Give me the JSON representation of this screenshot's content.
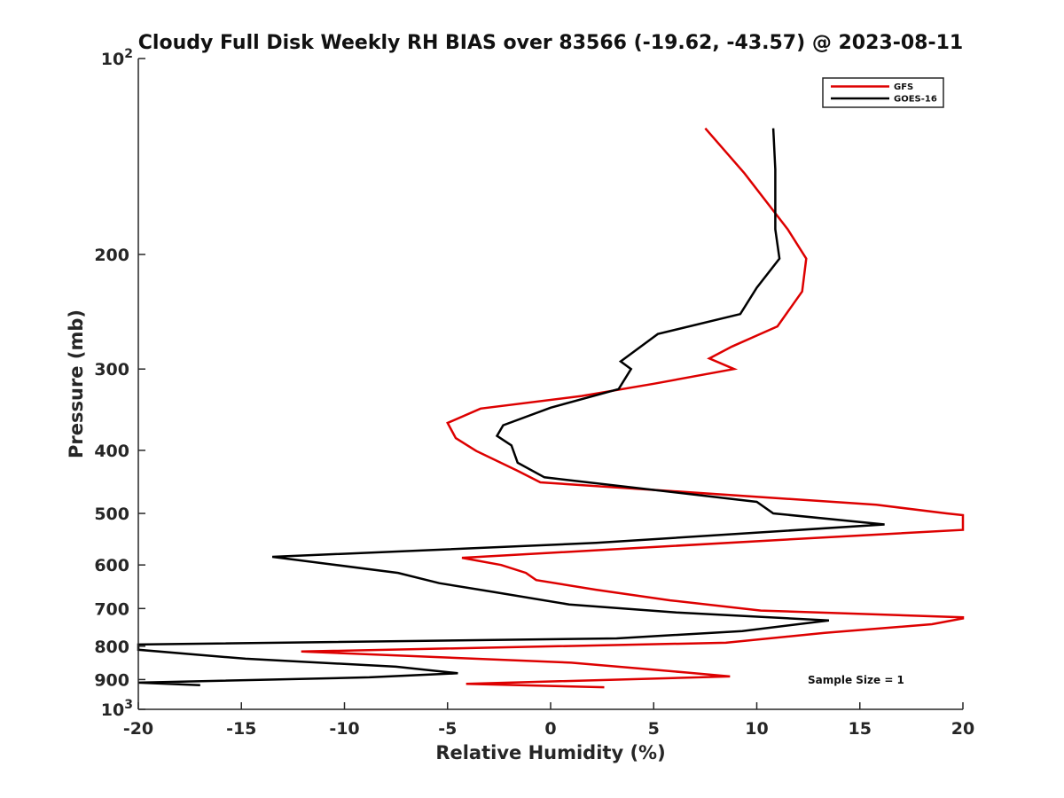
{
  "chart_data": {
    "type": "line",
    "title": "Cloudy Full Disk Weekly RH BIAS over 83566 (-19.62, -43.57) @ 2023-08-11",
    "xlabel": "Relative Humidity (%)",
    "ylabel": "Pressure (mb)",
    "xlim": [
      -20,
      20
    ],
    "ylim": [
      100,
      1000
    ],
    "yscale": "log",
    "y_reversed": true,
    "x_ticks": [
      -20,
      -15,
      -10,
      -5,
      0,
      5,
      10,
      15,
      20
    ],
    "x_tick_labels": [
      "-20",
      "-15",
      "-10",
      "-5",
      "0",
      "5",
      "10",
      "15",
      "20"
    ],
    "y_ticks": [
      200,
      300,
      400,
      500,
      600,
      700,
      800,
      900
    ],
    "y_tick_labels": [
      "200",
      "300",
      "400",
      "500",
      "600",
      "700",
      "800",
      "900"
    ],
    "y_power_ticks": [
      {
        "value": 100,
        "base": "10",
        "exp": "2"
      },
      {
        "value": 1000,
        "base": "10",
        "exp": "3"
      }
    ],
    "grid": false,
    "legend_position": "top-right",
    "annotation": "Sample Size = 1",
    "series": [
      {
        "name": "GFS",
        "color": "#dd0000",
        "x": [
          7.5,
          9.4,
          11.5,
          12.4,
          12.2,
          11.0,
          8.8,
          7.7,
          8.9,
          5.0,
          1.5,
          -3.4,
          -5.0,
          -4.6,
          -3.6,
          -1.6,
          -0.5,
          15.8,
          19.2,
          20.0,
          20.0,
          13.0,
          4.2,
          -4.3,
          -2.4,
          -1.2,
          -0.7,
          2.2,
          5.8,
          10.2,
          20.0,
          20.0,
          18.5,
          13.3,
          8.5,
          -12.1,
          1.0,
          6.6,
          8.7,
          -4.1,
          2.6
        ],
        "y": [
          128,
          150,
          183,
          203,
          228,
          258,
          277,
          289,
          300,
          316,
          330,
          345,
          363,
          383,
          401,
          430,
          448,
          485,
          500,
          503,
          530,
          545,
          565,
          585,
          600,
          617,
          633,
          655,
          680,
          705,
          722,
          725,
          740,
          763,
          790,
          815,
          848,
          878,
          890,
          914,
          925
        ]
      },
      {
        "name": "GOES-16",
        "color": "#000000",
        "x": [
          10.8,
          10.9,
          10.9,
          11.1,
          10.0,
          9.2,
          5.2,
          3.4,
          3.9,
          3.3,
          0.0,
          -2.3,
          -2.6,
          -1.9,
          -1.6,
          -0.3,
          10.0,
          10.8,
          16.2,
          2.2,
          -13.5,
          -7.4,
          -5.4,
          -2.8,
          0.9,
          6.1,
          13.5,
          9.3,
          3.2,
          -20.0,
          -20.0,
          -14.8,
          -7.5,
          -4.5,
          -8.8,
          -20.0,
          -17.0
        ],
        "y": [
          128,
          148,
          183,
          203,
          225,
          247,
          265,
          292,
          300,
          322,
          344,
          366,
          380,
          393,
          418,
          440,
          480,
          500,
          520,
          555,
          583,
          617,
          640,
          660,
          690,
          710,
          730,
          758,
          778,
          795,
          810,
          836,
          860,
          880,
          893,
          910,
          918
        ]
      }
    ]
  }
}
